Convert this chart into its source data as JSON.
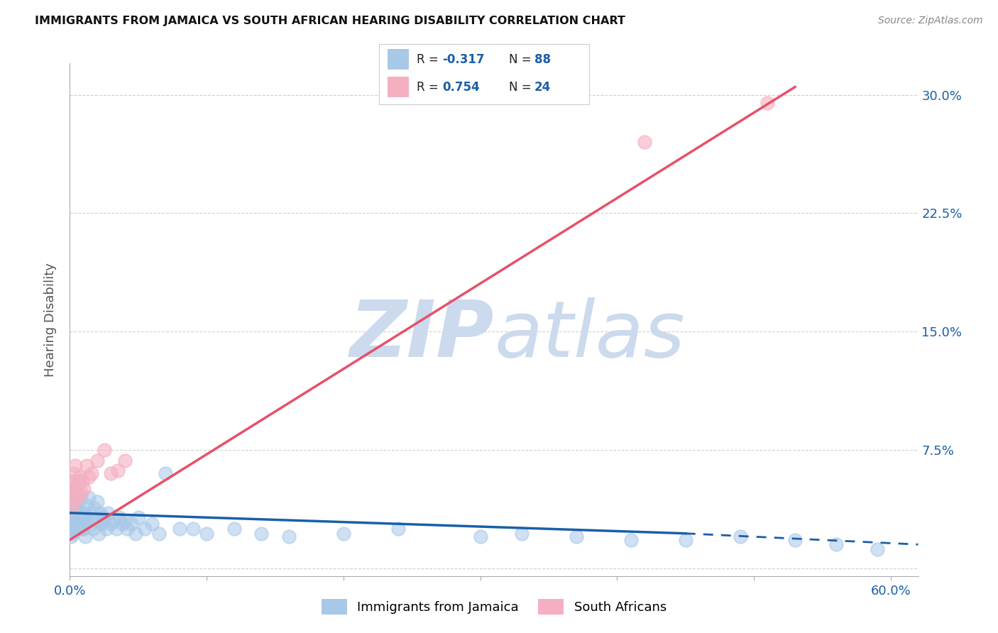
{
  "title": "IMMIGRANTS FROM JAMAICA VS SOUTH AFRICAN HEARING DISABILITY CORRELATION CHART",
  "source": "Source: ZipAtlas.com",
  "ylabel": "Hearing Disability",
  "xlim": [
    0.0,
    0.62
  ],
  "ylim": [
    -0.005,
    0.32
  ],
  "xticks": [
    0.0,
    0.1,
    0.2,
    0.3,
    0.4,
    0.5,
    0.6
  ],
  "xticklabels": [
    "0.0%",
    "",
    "",
    "",
    "",
    "",
    "60.0%"
  ],
  "yticks": [
    0.0,
    0.075,
    0.15,
    0.225,
    0.3
  ],
  "yticklabels": [
    "",
    "7.5%",
    "15.0%",
    "22.5%",
    "30.0%"
  ],
  "blue_color": "#a8c8e8",
  "pink_color": "#f4b0c0",
  "blue_line_color": "#1a5fa8",
  "pink_line_color": "#e8506a",
  "grid_color": "#bbbbbb",
  "background_color": "#ffffff",
  "watermark_color": "#ccdaee",
  "R_blue": -0.317,
  "N_blue": 88,
  "R_pink": 0.754,
  "N_pink": 24,
  "legend_label_blue": "Immigrants from Jamaica",
  "legend_label_pink": "South Africans",
  "blue_scatter_x": [
    0.001,
    0.001,
    0.001,
    0.001,
    0.001,
    0.002,
    0.002,
    0.002,
    0.002,
    0.002,
    0.002,
    0.003,
    0.003,
    0.003,
    0.003,
    0.003,
    0.003,
    0.004,
    0.004,
    0.004,
    0.004,
    0.004,
    0.005,
    0.005,
    0.005,
    0.005,
    0.006,
    0.006,
    0.006,
    0.007,
    0.007,
    0.007,
    0.008,
    0.008,
    0.008,
    0.009,
    0.009,
    0.01,
    0.01,
    0.011,
    0.011,
    0.012,
    0.013,
    0.014,
    0.015,
    0.016,
    0.017,
    0.018,
    0.019,
    0.02,
    0.021,
    0.022,
    0.023,
    0.024,
    0.025,
    0.027,
    0.028,
    0.03,
    0.032,
    0.034,
    0.036,
    0.038,
    0.04,
    0.042,
    0.045,
    0.048,
    0.05,
    0.055,
    0.06,
    0.065,
    0.07,
    0.08,
    0.09,
    0.1,
    0.12,
    0.14,
    0.16,
    0.2,
    0.24,
    0.3,
    0.33,
    0.37,
    0.41,
    0.45,
    0.49,
    0.53,
    0.56,
    0.59
  ],
  "blue_scatter_y": [
    0.03,
    0.04,
    0.025,
    0.035,
    0.02,
    0.038,
    0.045,
    0.03,
    0.025,
    0.035,
    0.022,
    0.04,
    0.03,
    0.045,
    0.025,
    0.035,
    0.028,
    0.038,
    0.05,
    0.03,
    0.025,
    0.042,
    0.03,
    0.048,
    0.025,
    0.035,
    0.04,
    0.028,
    0.032,
    0.055,
    0.03,
    0.025,
    0.035,
    0.028,
    0.045,
    0.03,
    0.025,
    0.03,
    0.025,
    0.035,
    0.02,
    0.04,
    0.03,
    0.045,
    0.028,
    0.035,
    0.025,
    0.038,
    0.03,
    0.042,
    0.022,
    0.035,
    0.028,
    0.032,
    0.03,
    0.025,
    0.035,
    0.028,
    0.03,
    0.025,
    0.032,
    0.028,
    0.03,
    0.025,
    0.028,
    0.022,
    0.032,
    0.025,
    0.028,
    0.022,
    0.06,
    0.025,
    0.025,
    0.022,
    0.025,
    0.022,
    0.02,
    0.022,
    0.025,
    0.02,
    0.022,
    0.02,
    0.018,
    0.018,
    0.02,
    0.018,
    0.015,
    0.012
  ],
  "pink_scatter_x": [
    0.001,
    0.001,
    0.002,
    0.002,
    0.003,
    0.003,
    0.004,
    0.004,
    0.005,
    0.006,
    0.007,
    0.008,
    0.009,
    0.01,
    0.012,
    0.014,
    0.016,
    0.02,
    0.025,
    0.03,
    0.035,
    0.04,
    0.42,
    0.51
  ],
  "pink_scatter_y": [
    0.045,
    0.055,
    0.05,
    0.038,
    0.06,
    0.042,
    0.055,
    0.065,
    0.05,
    0.045,
    0.058,
    0.048,
    0.055,
    0.05,
    0.065,
    0.058,
    0.06,
    0.068,
    0.075,
    0.06,
    0.062,
    0.068,
    0.27,
    0.295
  ],
  "pink_line_start_x": 0.0,
  "pink_line_start_y": 0.018,
  "pink_line_end_x": 0.53,
  "pink_line_end_y": 0.305,
  "blue_line_start_x": 0.0,
  "blue_line_start_y": 0.035,
  "blue_line_solid_end_x": 0.45,
  "blue_line_solid_end_y": 0.022,
  "blue_line_dash_end_x": 0.62,
  "blue_line_dash_end_y": 0.015
}
